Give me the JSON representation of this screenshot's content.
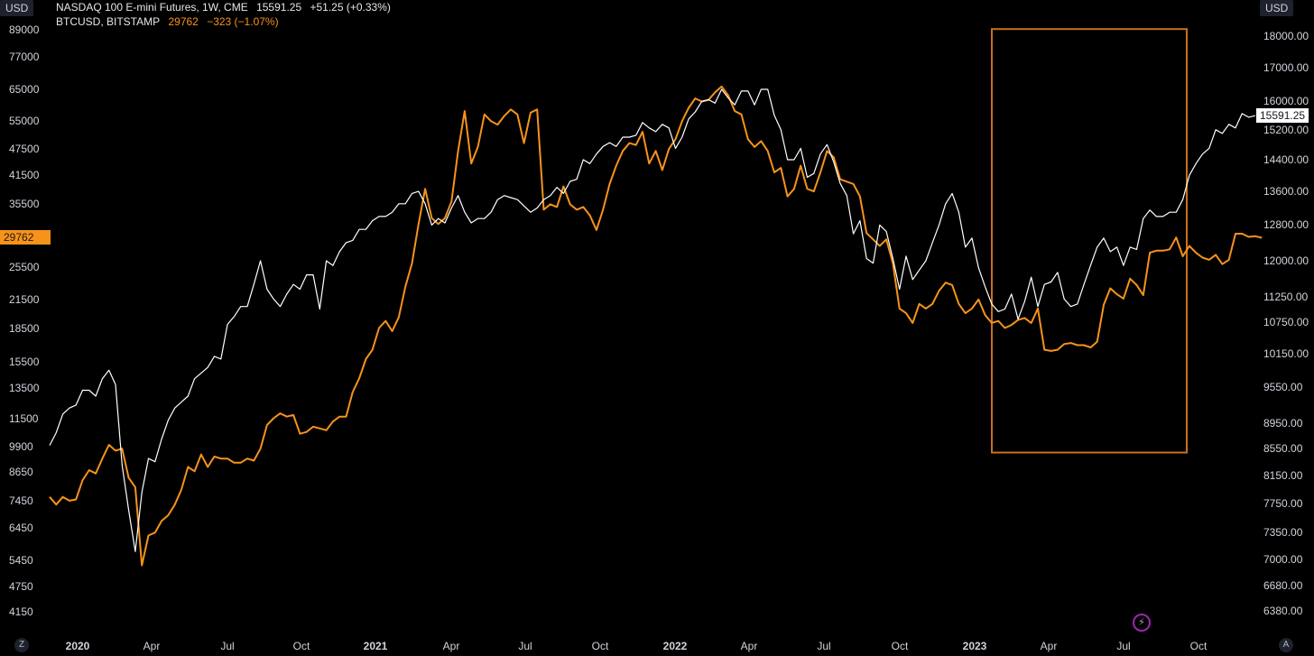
{
  "header": {
    "currency_left": "USD",
    "currency_right": "USD",
    "series1_label": "NASDAQ 100 E-mini Futures, 1W, CME",
    "series1_value": "15591.25",
    "series1_change": "+51.25 (+0.33%)",
    "series2_label": "BTCUSD, BITSTAMP",
    "series2_value": "29762",
    "series2_change": "−323 (−1.07%)"
  },
  "price_tags": {
    "btc": "29762",
    "ndx": "15591.25"
  },
  "buttons": {
    "zoom": "Z",
    "auto": "A",
    "bolt": "⚡"
  },
  "colors": {
    "btc": "#f7931a",
    "ndx": "#ffffff",
    "background": "#000000",
    "highlight_box": "#c8711a"
  },
  "chart_data": {
    "type": "line",
    "x_tick_labels": [
      "2020",
      "Apr",
      "Jul",
      "Oct",
      "2021",
      "Apr",
      "Jul",
      "Oct",
      "2022",
      "Apr",
      "Jul",
      "Oct",
      "2023",
      "Apr",
      "Jul",
      "Oct"
    ],
    "left_axis": {
      "series": "BTCUSD",
      "scale": "log",
      "tick_labels": [
        "89000",
        "77000",
        "65000",
        "55000",
        "47500",
        "41500",
        "35500",
        "25500",
        "21500",
        "18500",
        "15500",
        "13500",
        "11500",
        "9900",
        "8650",
        "7450",
        "6450",
        "5450",
        "4750",
        "4150"
      ]
    },
    "right_axis": {
      "series": "NASDAQ 100 E-mini Futures",
      "scale": "log",
      "tick_labels": [
        "18000.00",
        "17000.00",
        "16000.00",
        "15200.00",
        "14400.00",
        "13600.00",
        "12800.00",
        "12000.00",
        "11250.00",
        "10750.00",
        "10150.00",
        "9550.00",
        "8950.00",
        "8550.00",
        "8150.00",
        "7750.00",
        "7350.00",
        "7000.00",
        "6680.00",
        "6380.00"
      ]
    },
    "highlight_box": {
      "x_start": "2023-01",
      "x_end": "2023-08",
      "axis": "right",
      "y_low": 8490,
      "y_high": 18230
    },
    "series": [
      {
        "name": "BTCUSD, BITSTAMP",
        "axis": "left",
        "color": "#f7931a",
        "x_start": "2020-01-01",
        "x_step_weeks": 1,
        "values": [
          7600,
          7300,
          7600,
          7450,
          7500,
          8300,
          8750,
          8600,
          9300,
          10000,
          9700,
          9800,
          8400,
          8000,
          5300,
          6200,
          6300,
          6700,
          6900,
          7300,
          7900,
          8900,
          8700,
          9500,
          8900,
          9400,
          9300,
          9300,
          9100,
          9100,
          9300,
          9200,
          9800,
          11100,
          11500,
          11800,
          11600,
          11700,
          10600,
          10700,
          11000,
          10900,
          10800,
          11300,
          11600,
          11600,
          13200,
          14200,
          15700,
          16500,
          18500,
          19200,
          18200,
          19600,
          23000,
          26000,
          32000,
          38500,
          33000,
          32000,
          33000,
          36000,
          47000,
          58000,
          44000,
          48000,
          57000,
          55000,
          54000,
          56500,
          58500,
          57000,
          49000,
          57500,
          58500,
          34500,
          35500,
          35000,
          39000,
          35500,
          34500,
          35000,
          33500,
          31000,
          34500,
          39500,
          43500,
          47000,
          49000,
          48500,
          52000,
          44000,
          47000,
          42500,
          47500,
          50000,
          55000,
          59000,
          62000,
          61000,
          61500,
          64000,
          66000,
          63000,
          58000,
          57000,
          50000,
          48000,
          49500,
          47000,
          42000,
          43000,
          37000,
          38500,
          43500,
          38500,
          38000,
          42000,
          47000,
          45500,
          40500,
          40000,
          39500,
          37000,
          30500,
          29500,
          28500,
          29500,
          26000,
          20500,
          20000,
          19000,
          21000,
          20500,
          21000,
          22500,
          23500,
          23200,
          21000,
          20000,
          20500,
          21500,
          19800,
          19000,
          19200,
          18500,
          18800,
          19300,
          19500,
          19000,
          20500,
          16500,
          16400,
          16500,
          17000,
          17100,
          16900,
          16900,
          16700,
          17200,
          20900,
          22800,
          22100,
          21600,
          24000,
          23200,
          22000,
          27500,
          27800,
          27800,
          28000,
          29800,
          27000,
          28500,
          27500,
          26800,
          26500,
          27200,
          25900,
          26500,
          30400,
          30400,
          29900,
          30000,
          29762
        ]
      },
      {
        "name": "NASDAQ 100 E-mini Futures, 1W, CME",
        "axis": "right",
        "color": "#ffffff",
        "x_start": "2020-01-01",
        "x_step_weeks": 1,
        "values": [
          8600,
          8800,
          9100,
          9200,
          9250,
          9500,
          9500,
          9400,
          9700,
          9850,
          9600,
          8300,
          7650,
          7100,
          7900,
          8400,
          8350,
          8700,
          9000,
          9200,
          9300,
          9400,
          9700,
          9800,
          9900,
          10100,
          10050,
          10700,
          10850,
          11050,
          11050,
          11500,
          12000,
          11400,
          11200,
          11050,
          11300,
          11500,
          11400,
          11700,
          11700,
          11000,
          12000,
          11900,
          12200,
          12400,
          12450,
          12700,
          12700,
          12900,
          13000,
          13000,
          13100,
          13300,
          13300,
          13550,
          13600,
          13300,
          12800,
          12950,
          12850,
          13200,
          13500,
          13100,
          12850,
          12950,
          12950,
          13100,
          13400,
          13500,
          13450,
          13400,
          13250,
          13100,
          13200,
          13400,
          13500,
          13700,
          13550,
          13850,
          13900,
          14400,
          14300,
          14550,
          14750,
          14850,
          14750,
          15000,
          15000,
          15050,
          15400,
          15250,
          15150,
          15350,
          15250,
          14700,
          15000,
          15500,
          15700,
          16000,
          16050,
          15950,
          16350,
          16100,
          15900,
          16300,
          16300,
          15900,
          16350,
          16350,
          15600,
          15200,
          14400,
          14400,
          14700,
          13950,
          14050,
          14550,
          14800,
          14350,
          13800,
          13500,
          12600,
          12900,
          12050,
          11950,
          12800,
          12650,
          12050,
          11400,
          12100,
          11600,
          11800,
          12000,
          12400,
          12800,
          13300,
          13550,
          13100,
          12300,
          12500,
          11850,
          11450,
          11100,
          10950,
          11000,
          11300,
          10800,
          11150,
          11650,
          11050,
          11500,
          11550,
          11750,
          11200,
          11050,
          11100,
          11500,
          11900,
          12300,
          12500,
          12200,
          12300,
          11900,
          12300,
          12250,
          12950,
          13150,
          13000,
          13000,
          13100,
          13100,
          13400,
          14000,
          14300,
          14550,
          14700,
          15200,
          15100,
          15350,
          15250,
          15650,
          15550,
          15591.25
        ]
      }
    ]
  }
}
